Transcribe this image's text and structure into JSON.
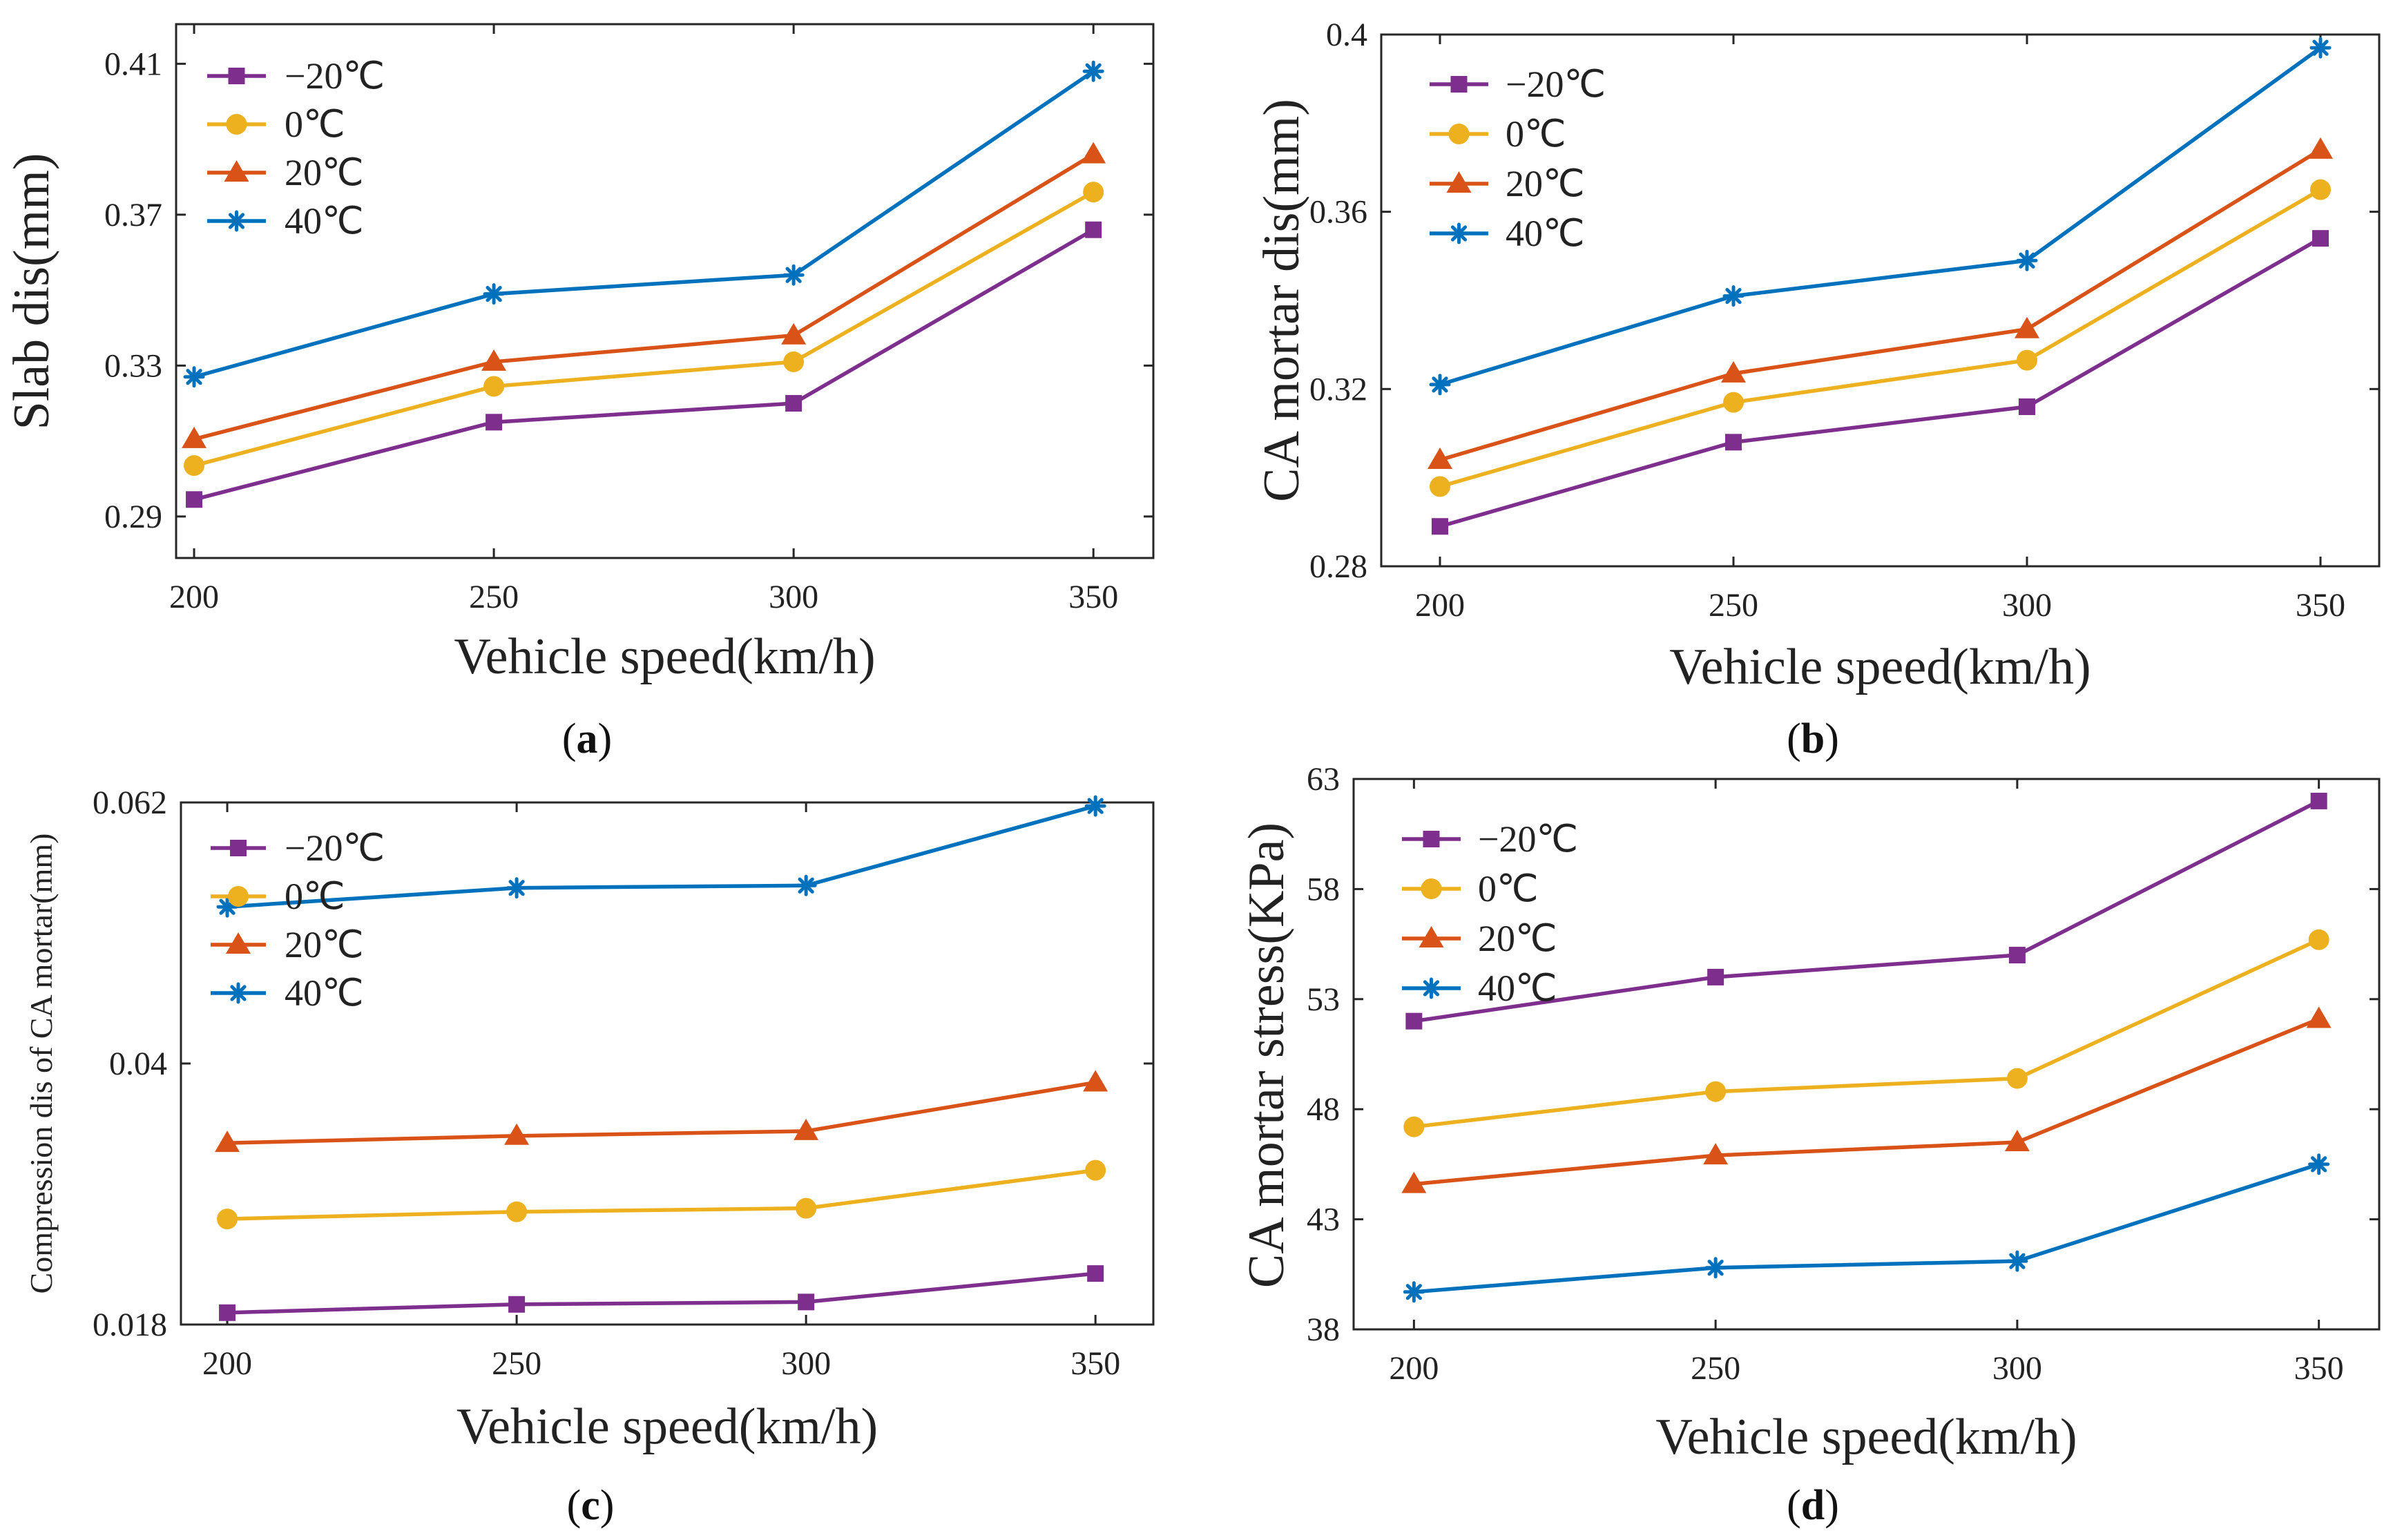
{
  "colors": {
    "-20C": "#7E2F8E",
    "0C": "#EDB120",
    "20C": "#D95319",
    "40C": "#0072BD"
  },
  "chart_data": [
    {
      "id": "a",
      "type": "line",
      "caption": "(a)",
      "caption_letter": "a",
      "xlabel": "Vehicle speed(km/h)",
      "ylabel": "Slab dis(mm)",
      "x": [
        200,
        250,
        300,
        350
      ],
      "xticks": [
        "200",
        "250",
        "300",
        "350"
      ],
      "yticks": [
        "0.29",
        "0.33",
        "0.37",
        "0.41"
      ],
      "ytick_values": [
        0.29,
        0.33,
        0.37,
        0.41
      ],
      "xlim": [
        197,
        360
      ],
      "ylim": [
        0.279,
        0.4205
      ],
      "legend_position": "top-left",
      "series": [
        {
          "name": "−20℃",
          "key": "-20C",
          "marker": "square",
          "values": [
            0.2945,
            0.315,
            0.32,
            0.366
          ]
        },
        {
          "name": "0℃",
          "key": "0C",
          "marker": "circle",
          "values": [
            0.3035,
            0.3245,
            0.331,
            0.376
          ]
        },
        {
          "name": "20℃",
          "key": "20C",
          "marker": "triangle",
          "values": [
            0.3105,
            0.331,
            0.338,
            0.386
          ]
        },
        {
          "name": "40℃",
          "key": "40C",
          "marker": "star",
          "values": [
            0.327,
            0.349,
            0.354,
            0.408
          ]
        }
      ]
    },
    {
      "id": "b",
      "type": "line",
      "caption": "(b)",
      "caption_letter": "b",
      "xlabel": "Vehicle speed(km/h)",
      "ylabel": "CA mortar dis(mm)",
      "x": [
        200,
        250,
        300,
        350
      ],
      "xticks": [
        "200",
        "250",
        "300",
        "350"
      ],
      "yticks": [
        "0.28",
        "0.32",
        "0.36",
        "0.4"
      ],
      "ytick_values": [
        0.28,
        0.32,
        0.36,
        0.4
      ],
      "xlim": [
        190,
        360
      ],
      "ylim": [
        0.28,
        0.4
      ],
      "legend_position": "top-left",
      "series": [
        {
          "name": "−20℃",
          "key": "-20C",
          "marker": "square",
          "values": [
            0.289,
            0.308,
            0.316,
            0.354
          ]
        },
        {
          "name": "0℃",
          "key": "0C",
          "marker": "circle",
          "values": [
            0.298,
            0.317,
            0.3265,
            0.365
          ]
        },
        {
          "name": "20℃",
          "key": "20C",
          "marker": "triangle",
          "values": [
            0.304,
            0.3235,
            0.3335,
            0.374
          ]
        },
        {
          "name": "40℃",
          "key": "40C",
          "marker": "star",
          "values": [
            0.321,
            0.341,
            0.349,
            0.397
          ]
        }
      ]
    },
    {
      "id": "c",
      "type": "line",
      "caption": "(c)",
      "caption_letter": "c",
      "xlabel": "Vehicle speed(km/h)",
      "ylabel": "Compression dis of CA mortar(mm)",
      "x": [
        200,
        250,
        300,
        350
      ],
      "xticks": [
        "200",
        "250",
        "300",
        "350"
      ],
      "yticks": [
        "0.018",
        "0.04",
        "0.062"
      ],
      "ytick_values": [
        0.018,
        0.04,
        0.062
      ],
      "xlim": [
        192,
        360
      ],
      "ylim": [
        0.018,
        0.062
      ],
      "legend_position": "top-left",
      "series": [
        {
          "name": "−20℃",
          "key": "-20C",
          "marker": "square",
          "values": [
            0.019,
            0.0197,
            0.0199,
            0.0223
          ]
        },
        {
          "name": "0℃",
          "key": "0C",
          "marker": "circle",
          "values": [
            0.0269,
            0.0275,
            0.0278,
            0.031
          ]
        },
        {
          "name": "20℃",
          "key": "20C",
          "marker": "triangle",
          "values": [
            0.0333,
            0.0339,
            0.0343,
            0.0384
          ]
        },
        {
          "name": "40℃",
          "key": "40C",
          "marker": "star",
          "values": [
            0.0532,
            0.0548,
            0.055,
            0.0617
          ]
        }
      ]
    },
    {
      "id": "d",
      "type": "line",
      "caption": "(d)",
      "caption_letter": "d",
      "xlabel": "Vehicle speed(km/h)",
      "ylabel": "CA mortar stress(KPa)",
      "x": [
        200,
        250,
        300,
        350
      ],
      "xticks": [
        "200",
        "250",
        "300",
        "350"
      ],
      "yticks": [
        "38",
        "43",
        "48",
        "53",
        "58",
        "63"
      ],
      "ytick_values": [
        38,
        43,
        48,
        53,
        58,
        63
      ],
      "xlim": [
        190,
        360
      ],
      "ylim": [
        38,
        63
      ],
      "legend_position": "top-left",
      "series": [
        {
          "name": "−20℃",
          "key": "-20C",
          "marker": "square",
          "values": [
            52.0,
            54.0,
            55.0,
            62.0
          ]
        },
        {
          "name": "0℃",
          "key": "0C",
          "marker": "circle",
          "values": [
            47.2,
            48.8,
            49.4,
            55.7
          ]
        },
        {
          "name": "20℃",
          "key": "20C",
          "marker": "triangle",
          "values": [
            44.6,
            45.9,
            46.5,
            52.1
          ]
        },
        {
          "name": "40℃",
          "key": "40C",
          "marker": "star",
          "values": [
            39.7,
            40.8,
            41.1,
            45.5
          ]
        }
      ]
    }
  ]
}
